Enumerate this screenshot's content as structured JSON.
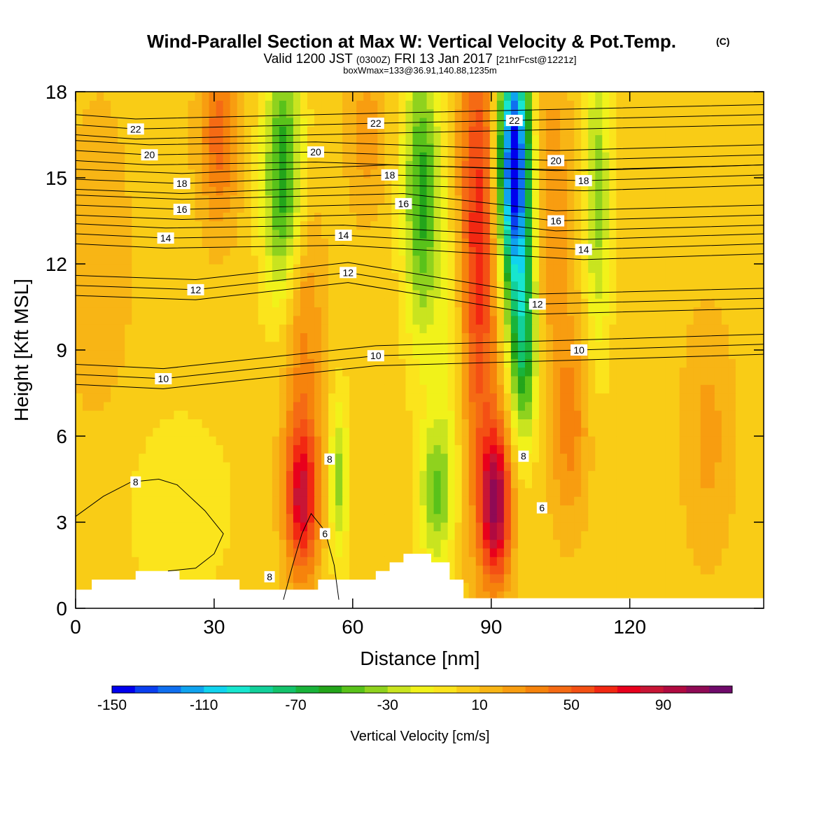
{
  "header": {
    "title": "Wind-Parallel Section at Max W: Vertical Velocity & Pot.Temp.",
    "title_mark": "(C)",
    "valid_prefix": "Valid 1200 JST",
    "valid_utc": "(0300Z)",
    "valid_date": "FRI 13 Jan 2017",
    "forecast_info": "[21hrFcst@1221z]",
    "box_info": "boxWmax=133@36.91,140.88,1235m"
  },
  "chart_data": {
    "type": "heatmap",
    "xlabel": "Distance [nm]",
    "ylabel": "Height [Kft MSL]",
    "xlim": [
      0,
      149
    ],
    "ylim": [
      0,
      18
    ],
    "x_ticks": [
      0,
      30,
      60,
      90,
      120
    ],
    "y_ticks": [
      0,
      3,
      6,
      9,
      12,
      15,
      18
    ],
    "colorbar": {
      "label": "Vertical Velocity [cm/s]",
      "min": -150,
      "max": 120,
      "step": 10,
      "tick_labels": [
        -150,
        -110,
        -70,
        -30,
        10,
        50,
        90
      ],
      "colors": [
        "#0000ee",
        "#0a3ff0",
        "#0f6ff0",
        "#0fa3ef",
        "#10d3ef",
        "#17e6cf",
        "#12d09a",
        "#13c36b",
        "#19b33a",
        "#23a51a",
        "#59c21a",
        "#8fd21e",
        "#c9e41f",
        "#f1f21a",
        "#fbe41c",
        "#f9cc16",
        "#f8b515",
        "#f89d10",
        "#f6830c",
        "#f56a14",
        "#f45014",
        "#f22812",
        "#e8001c",
        "#c81535",
        "#b00a40",
        "#8f0a55",
        "#6f0a6a"
      ]
    },
    "terrain_profile": [
      {
        "x": 0,
        "y": 0.65
      },
      {
        "x": 3.5,
        "y": 0.65
      },
      {
        "x": 3.5,
        "y": 1.0
      },
      {
        "x": 13,
        "y": 1.0
      },
      {
        "x": 13,
        "y": 1.3
      },
      {
        "x": 22.5,
        "y": 1.3
      },
      {
        "x": 22.5,
        "y": 1.0
      },
      {
        "x": 35.5,
        "y": 1.0
      },
      {
        "x": 35.5,
        "y": 0.65
      },
      {
        "x": 52.5,
        "y": 0.65
      },
      {
        "x": 52.5,
        "y": 1.0
      },
      {
        "x": 65,
        "y": 1.0
      },
      {
        "x": 65,
        "y": 1.3
      },
      {
        "x": 68,
        "y": 1.3
      },
      {
        "x": 68,
        "y": 1.6
      },
      {
        "x": 71,
        "y": 1.6
      },
      {
        "x": 71,
        "y": 1.9
      },
      {
        "x": 77,
        "y": 1.9
      },
      {
        "x": 77,
        "y": 1.6
      },
      {
        "x": 81,
        "y": 1.6
      },
      {
        "x": 81,
        "y": 1.0
      },
      {
        "x": 84,
        "y": 1.0
      },
      {
        "x": 84,
        "y": 0.35
      },
      {
        "x": 149,
        "y": 0.35
      }
    ],
    "velocity_features": [
      {
        "x": 49,
        "y": 3.8,
        "sx": 2.5,
        "sy": 1.9,
        "value": 75
      },
      {
        "x": 49,
        "y": 9.5,
        "sx": 3.2,
        "sy": 3.5,
        "value": 30
      },
      {
        "x": 91,
        "y": 3.6,
        "sx": 2.3,
        "sy": 1.9,
        "value": 95
      },
      {
        "x": 87,
        "y": 12.5,
        "sx": 3.0,
        "sy": 6.0,
        "value": 65
      },
      {
        "x": 95,
        "y": 15.5,
        "sx": 2.4,
        "sy": 3.0,
        "value": -160
      },
      {
        "x": 97,
        "y": 9.5,
        "sx": 2.0,
        "sy": 2.5,
        "value": -75
      },
      {
        "x": 45,
        "y": 15.0,
        "sx": 3.0,
        "sy": 3.2,
        "value": -65
      },
      {
        "x": 75,
        "y": 14.5,
        "sx": 2.8,
        "sy": 3.6,
        "value": -60
      },
      {
        "x": 57,
        "y": 4.5,
        "sx": 1.5,
        "sy": 2.0,
        "value": -40
      },
      {
        "x": 78,
        "y": 4.0,
        "sx": 2.5,
        "sy": 1.8,
        "value": -45
      },
      {
        "x": 113,
        "y": 14.5,
        "sx": 2.0,
        "sy": 4.0,
        "value": -40
      },
      {
        "x": 31,
        "y": 16.5,
        "sx": 3.0,
        "sy": 2.2,
        "value": 40
      },
      {
        "x": 103,
        "y": 14.0,
        "sx": 3.0,
        "sy": 3.5,
        "value": 25
      },
      {
        "x": 107,
        "y": 6.5,
        "sx": 3.0,
        "sy": 2.5,
        "value": 30
      },
      {
        "x": 137,
        "y": 6.0,
        "sx": 4.0,
        "sy": 3.0,
        "value": 18
      },
      {
        "x": 22,
        "y": 3.5,
        "sx": 9.0,
        "sy": 2.5,
        "value": -12
      },
      {
        "x": 82,
        "y": 9.0,
        "sx": 3.0,
        "sy": 4.0,
        "value": -20
      },
      {
        "x": 63,
        "y": 16.5,
        "sx": 3.0,
        "sy": 2.0,
        "value": 20
      },
      {
        "x": 5,
        "y": 12.0,
        "sx": 6.0,
        "sy": 5.0,
        "value": 10
      }
    ],
    "background_value": 5,
    "isentropes": [
      {
        "label": "8",
        "label_at": [
          {
            "x": 13,
            "y": 4.4
          },
          {
            "x": 42,
            "y": 1.1
          },
          {
            "x": 55,
            "y": 5.2
          },
          {
            "x": 97,
            "y": 5.3
          }
        ],
        "points": [
          [
            0,
            3.2
          ],
          [
            6,
            3.9
          ],
          [
            12,
            4.4
          ],
          [
            18,
            4.5
          ],
          [
            22,
            4.3
          ],
          [
            28,
            3.4
          ],
          [
            32,
            2.6
          ],
          [
            30,
            1.9
          ],
          [
            26,
            1.4
          ],
          [
            20,
            1.3
          ]
        ]
      },
      {
        "label": "6",
        "label_at": [
          {
            "x": 54,
            "y": 2.6
          },
          {
            "x": 101,
            "y": 3.5
          }
        ],
        "points": [
          [
            45,
            0.3
          ],
          [
            47,
            1.5
          ],
          [
            49,
            2.6
          ],
          [
            51,
            3.3
          ],
          [
            54,
            2.7
          ],
          [
            56,
            1.5
          ],
          [
            57,
            0.3
          ]
        ]
      }
    ],
    "isentrope_levels": [
      {
        "label": "10",
        "label_at": [
          {
            "x": 19,
            "y": 8.0
          },
          {
            "x": 65,
            "y": 8.8
          },
          {
            "x": 109,
            "y": 9.0
          }
        ]
      },
      {
        "label": "12",
        "label_at": [
          {
            "x": 26,
            "y": 11.1
          },
          {
            "x": 59,
            "y": 11.7
          },
          {
            "x": 100,
            "y": 10.6
          }
        ]
      },
      {
        "label": "14",
        "label_at": [
          {
            "x": 19.5,
            "y": 12.9
          },
          {
            "x": 58,
            "y": 13.0
          },
          {
            "x": 110,
            "y": 12.5
          }
        ]
      },
      {
        "label": "16",
        "label_at": [
          {
            "x": 23,
            "y": 13.9
          },
          {
            "x": 71,
            "y": 14.1
          },
          {
            "x": 104,
            "y": 13.5
          }
        ]
      },
      {
        "label": "18",
        "label_at": [
          {
            "x": 23,
            "y": 14.8
          },
          {
            "x": 68,
            "y": 15.1
          },
          {
            "x": 110,
            "y": 14.9
          }
        ]
      },
      {
        "label": "20",
        "label_at": [
          {
            "x": 16,
            "y": 15.8
          },
          {
            "x": 52,
            "y": 15.9
          },
          {
            "x": 104,
            "y": 15.6
          }
        ]
      },
      {
        "label": "22",
        "label_at": [
          {
            "x": 13,
            "y": 16.7
          },
          {
            "x": 65,
            "y": 16.9
          },
          {
            "x": 95,
            "y": 17.0
          }
        ]
      }
    ]
  }
}
